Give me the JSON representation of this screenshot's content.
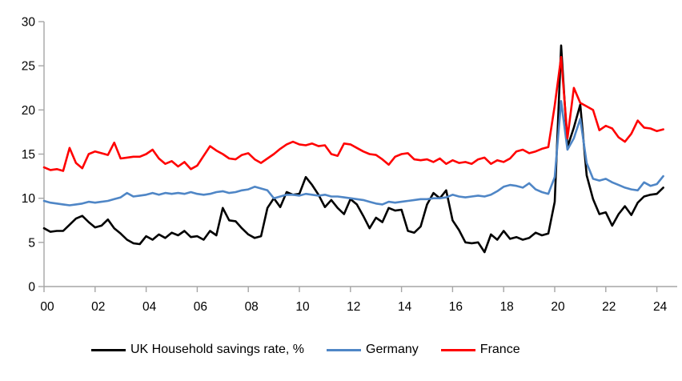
{
  "chart_data": {
    "type": "line",
    "title": "",
    "frequency": "quarterly",
    "x_start_year": 2000,
    "x_tick_labels": [
      "00",
      "02",
      "04",
      "06",
      "08",
      "10",
      "12",
      "14",
      "16",
      "18",
      "20",
      "22",
      "24"
    ],
    "x_tick_step_years": 2,
    "y_ticks": [
      0,
      5,
      10,
      15,
      20,
      25,
      30
    ],
    "ylim": [
      0,
      30
    ],
    "grid": false,
    "legend_position": "bottom",
    "axis_color": "#A6A6A6",
    "text_color": "#000000",
    "series": [
      {
        "name": "UK Household savings rate, %",
        "color": "#000000",
        "values": [
          6.6,
          6.2,
          6.3,
          6.3,
          7.0,
          7.7,
          8.0,
          7.3,
          6.7,
          6.9,
          7.6,
          6.6,
          6.0,
          5.3,
          4.9,
          4.8,
          5.7,
          5.3,
          5.9,
          5.5,
          6.1,
          5.8,
          6.3,
          5.6,
          5.7,
          5.3,
          6.3,
          5.8,
          8.9,
          7.5,
          7.4,
          6.6,
          5.9,
          5.5,
          5.7,
          8.9,
          10.0,
          9.0,
          10.7,
          10.4,
          10.5,
          12.4,
          11.5,
          10.4,
          9.0,
          9.8,
          8.9,
          8.2,
          9.9,
          9.3,
          8.0,
          6.6,
          7.8,
          7.3,
          8.9,
          8.6,
          8.7,
          6.3,
          6.1,
          6.8,
          9.3,
          10.6,
          10.0,
          10.9,
          7.5,
          6.4,
          5.0,
          4.9,
          5.0,
          3.9,
          5.9,
          5.3,
          6.3,
          5.4,
          5.6,
          5.3,
          5.5,
          6.1,
          5.8,
          6.0,
          9.6,
          27.3,
          15.8,
          18.0,
          20.6,
          12.6,
          9.9,
          8.2,
          8.4,
          6.9,
          8.2,
          9.1,
          8.1,
          9.5,
          10.2,
          10.4,
          10.5,
          11.2
        ]
      },
      {
        "name": "Germany",
        "color": "#4F86C6",
        "values": [
          9.7,
          9.5,
          9.4,
          9.3,
          9.2,
          9.3,
          9.4,
          9.6,
          9.5,
          9.6,
          9.7,
          9.9,
          10.1,
          10.6,
          10.2,
          10.3,
          10.4,
          10.6,
          10.4,
          10.6,
          10.5,
          10.6,
          10.5,
          10.7,
          10.5,
          10.4,
          10.5,
          10.7,
          10.8,
          10.6,
          10.7,
          10.9,
          11.0,
          11.3,
          11.1,
          10.9,
          10.0,
          10.2,
          10.4,
          10.4,
          10.3,
          10.5,
          10.4,
          10.3,
          10.4,
          10.2,
          10.2,
          10.1,
          10.0,
          9.9,
          9.8,
          9.6,
          9.4,
          9.3,
          9.6,
          9.5,
          9.6,
          9.7,
          9.8,
          9.9,
          9.9,
          10.0,
          10.0,
          10.1,
          10.4,
          10.2,
          10.1,
          10.2,
          10.3,
          10.2,
          10.4,
          10.8,
          11.3,
          11.5,
          11.4,
          11.2,
          11.7,
          11.0,
          10.7,
          10.5,
          12.4,
          21.0,
          15.5,
          16.8,
          19.0,
          14.0,
          12.2,
          12.0,
          12.2,
          11.8,
          11.5,
          11.2,
          11.0,
          10.9,
          11.8,
          11.4,
          11.6,
          12.5
        ]
      },
      {
        "name": "France",
        "color": "#FF0000",
        "values": [
          13.5,
          13.2,
          13.3,
          13.1,
          15.7,
          14.0,
          13.4,
          15.0,
          15.3,
          15.1,
          14.9,
          16.3,
          14.5,
          14.6,
          14.7,
          14.7,
          15.0,
          15.5,
          14.5,
          13.9,
          14.2,
          13.6,
          14.1,
          13.3,
          13.7,
          14.8,
          15.9,
          15.4,
          15.0,
          14.5,
          14.4,
          14.9,
          15.1,
          14.4,
          14.0,
          14.5,
          15.0,
          15.6,
          16.1,
          16.4,
          16.1,
          16.0,
          16.2,
          15.9,
          16.0,
          15.0,
          14.8,
          16.2,
          16.1,
          15.7,
          15.3,
          15.0,
          14.9,
          14.4,
          13.8,
          14.7,
          15.0,
          15.1,
          14.4,
          14.3,
          14.4,
          14.1,
          14.5,
          13.9,
          14.3,
          14.0,
          14.1,
          13.9,
          14.4,
          14.6,
          13.9,
          14.3,
          14.1,
          14.5,
          15.3,
          15.5,
          15.1,
          15.3,
          15.6,
          15.8,
          20.5,
          26.0,
          16.8,
          22.5,
          20.8,
          20.4,
          20.0,
          17.7,
          18.2,
          17.9,
          16.9,
          16.4,
          17.3,
          18.8,
          18.0,
          17.9,
          17.6,
          17.8
        ]
      }
    ]
  }
}
